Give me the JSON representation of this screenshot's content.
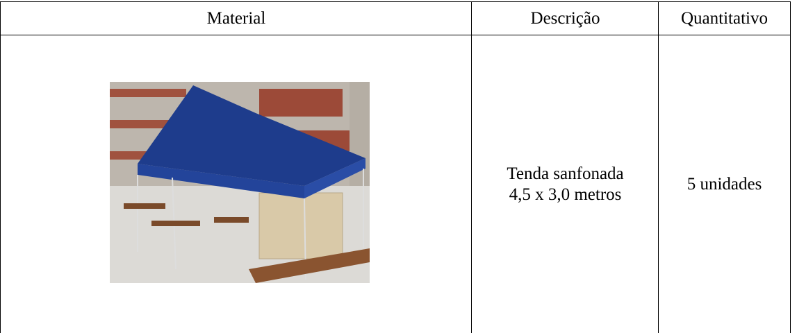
{
  "table": {
    "headers": [
      "Material",
      "Descrição",
      "Quantitativo"
    ],
    "rows": [
      {
        "description": [
          "Tenda sanfonada",
          "4,5 x 3,0 metros"
        ],
        "quantity": "5 unidades"
      }
    ]
  }
}
